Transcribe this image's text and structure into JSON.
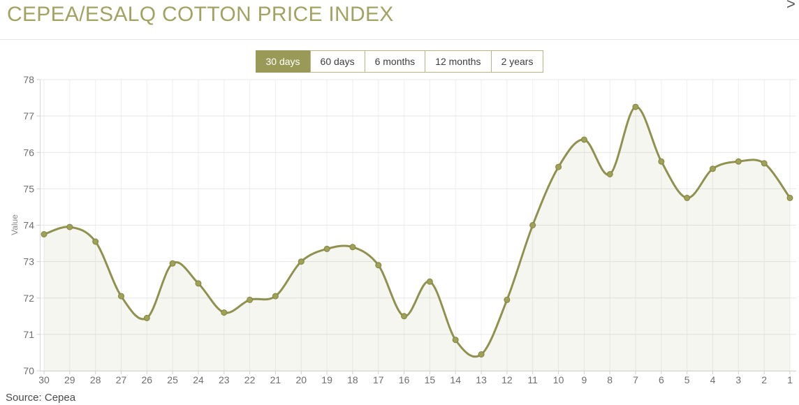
{
  "header": {
    "title": "CEPEA/ESALQ COTTON PRICE INDEX",
    "close_glyph": ">"
  },
  "ranges": {
    "options": [
      "30 days",
      "60 days",
      "6 months",
      "12 months",
      "2 years"
    ],
    "active": "30 days"
  },
  "chart_data": {
    "type": "area",
    "title": "CEPEA/ESALQ COTTON PRICE INDEX",
    "xlabel": "",
    "ylabel": "Value",
    "ylim": [
      70,
      78
    ],
    "y_ticks": [
      70,
      71,
      72,
      73,
      74,
      75,
      76,
      77,
      78
    ],
    "grid": true,
    "legend": "none",
    "categories": [
      "30",
      "29",
      "28",
      "27",
      "26",
      "25",
      "24",
      "23",
      "22",
      "21",
      "20",
      "19",
      "18",
      "17",
      "16",
      "15",
      "14",
      "13",
      "12",
      "11",
      "10",
      "9",
      "8",
      "7",
      "6",
      "5",
      "4",
      "3",
      "2",
      "1"
    ],
    "values": [
      73.75,
      73.95,
      73.55,
      72.05,
      71.45,
      72.95,
      72.4,
      71.6,
      71.95,
      72.05,
      73.0,
      73.35,
      73.4,
      72.9,
      71.5,
      72.45,
      70.85,
      70.45,
      71.95,
      74.0,
      75.6,
      76.35,
      75.4,
      77.25,
      75.75,
      74.75,
      75.55,
      75.75,
      75.7,
      74.75
    ]
  },
  "footer": {
    "source": "Source: Cepea"
  },
  "colors": {
    "accent": "#999a57",
    "title": "#a2a363",
    "line": "#90914f",
    "marker_fill": "#9fa159",
    "marker_stroke": "#83853f",
    "area_fill": "rgba(144,146,78,0.08)",
    "grid_h": "#e7e7e7",
    "grid_v": "#eeeeee",
    "axis": "#d6d6d6",
    "tick": "#cfcfcf",
    "tick_text": "#6e6e6e",
    "axis_title_text": "#8a8a8a"
  }
}
